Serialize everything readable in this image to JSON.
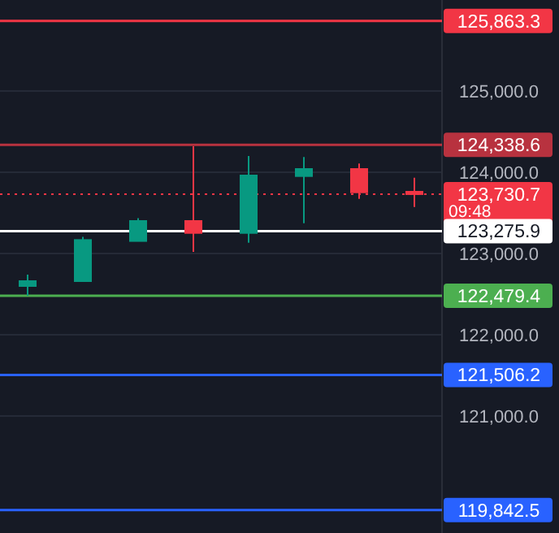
{
  "chart_data": {
    "type": "candlestick",
    "categories": [
      null,
      null,
      null,
      null,
      null,
      null,
      null,
      null
    ],
    "ohlc": [
      [
        122600,
        122740,
        122480,
        122660
      ],
      [
        122660,
        123206,
        122654,
        123166
      ],
      [
        123154,
        123434,
        123150,
        123400
      ],
      [
        123400,
        124320,
        123020,
        123253
      ],
      [
        123253,
        124200,
        123133,
        123960
      ],
      [
        123953,
        124187,
        123373,
        124040
      ],
      [
        124040,
        124107,
        123673,
        123753
      ],
      [
        123760,
        123933,
        123573,
        123730.7
      ]
    ],
    "colors": [
      "#089981",
      "#089981",
      "#089981",
      "#f23645",
      "#089981",
      "#089981",
      "#f23645",
      "#f23645"
    ],
    "ylim": [
      119560,
      126120
    ],
    "yticks": [
      {
        "value": 121000,
        "label": "121,000.0"
      },
      {
        "value": 122000,
        "label": "122,000.0"
      },
      {
        "value": 123000,
        "label": "123,000.0"
      },
      {
        "value": 124000,
        "label": "124,000.0"
      },
      {
        "value": 125000,
        "label": "125,000.0"
      }
    ],
    "grid": "y",
    "ref_lines": [
      {
        "axis": "y",
        "value": 125863.3,
        "label": "125,863.3",
        "color": "#f23645"
      },
      {
        "axis": "y",
        "value": 124338.6,
        "label": "124,338.6",
        "color": "#b8323f"
      },
      {
        "axis": "y",
        "value": 123730.7,
        "label": "123,730.7",
        "color": "#f23645",
        "line_style": "dotted"
      },
      {
        "axis": "y",
        "value": 123275.9,
        "label": "123,275.9",
        "color": "#ffffff"
      },
      {
        "axis": "y",
        "value": 122479.4,
        "label": "122,479.4",
        "color": "#4caf50"
      },
      {
        "axis": "y",
        "value": 121506.2,
        "label": "121,506.2",
        "color": "#2962ff"
      },
      {
        "axis": "y",
        "value": 119842.5,
        "label": "119,842.5",
        "color": "#2962ff"
      }
    ],
    "annotations": [
      "09:48"
    ]
  }
}
